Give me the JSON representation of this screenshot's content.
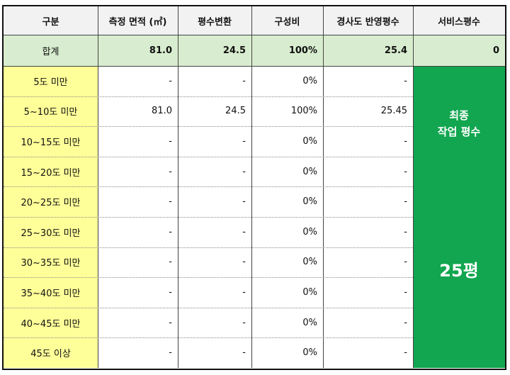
{
  "table": {
    "headers": [
      "구분",
      "측정 면적 (㎡)",
      "평수변환",
      "구성비",
      "경사도 반영평수",
      "서비스평수"
    ],
    "total_row": {
      "label": "합계",
      "area": "81.0",
      "pyeong": "24.5",
      "ratio": "100%",
      "slope_pyeong": "25.4",
      "service": "0"
    },
    "rows": [
      {
        "label": "5도 미만",
        "area": "-",
        "pyeong": "-",
        "ratio": "0%",
        "slope_pyeong": "-"
      },
      {
        "label": "5~10도 미만",
        "area": "81.0",
        "pyeong": "24.5",
        "ratio": "100%",
        "slope_pyeong": "25.45"
      },
      {
        "label": "10~15도 미만",
        "area": "-",
        "pyeong": "-",
        "ratio": "0%",
        "slope_pyeong": "-"
      },
      {
        "label": "15~20도 미만",
        "area": "-",
        "pyeong": "-",
        "ratio": "0%",
        "slope_pyeong": "-"
      },
      {
        "label": "20~25도 미만",
        "area": "-",
        "pyeong": "-",
        "ratio": "0%",
        "slope_pyeong": "-"
      },
      {
        "label": "25~30도 미만",
        "area": "-",
        "pyeong": "-",
        "ratio": "0%",
        "slope_pyeong": "-"
      },
      {
        "label": "30~35도 미만",
        "area": "-",
        "pyeong": "-",
        "ratio": "0%",
        "slope_pyeong": "-"
      },
      {
        "label": "35~40도 미만",
        "area": "-",
        "pyeong": "-",
        "ratio": "0%",
        "slope_pyeong": "-"
      },
      {
        "label": "40~45도 미만",
        "area": "-",
        "pyeong": "-",
        "ratio": "0%",
        "slope_pyeong": "-"
      },
      {
        "label": "45도 이상",
        "area": "-",
        "pyeong": "-",
        "ratio": "0%",
        "slope_pyeong": "-"
      }
    ],
    "final_box": {
      "title_line1": "최종",
      "title_line2": "작업 평수",
      "value": "25평"
    }
  },
  "colors": {
    "header_bg": "#f2f2f2",
    "total_bg": "#d8edcf",
    "category_bg": "#ffff99",
    "final_bg": "#11a64f"
  }
}
